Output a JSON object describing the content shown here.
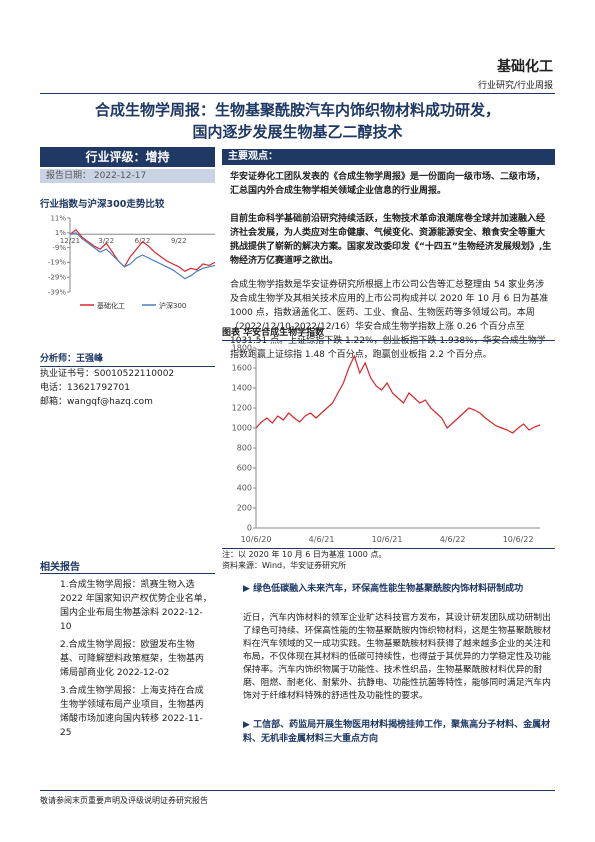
{
  "header": {
    "sector": "基础化工",
    "category": "行业研究/行业周报"
  },
  "title": [
    "合成生物学周报：生物基聚酰胺汽车内饰织物材料成功研发，",
    "国内逐步发展生物基乙二醇技术"
  ],
  "sidebar": {
    "rating_label": "行业评级：",
    "rating": "增持",
    "date_label": "报告日期：",
    "date": "2022-12-17",
    "analyst": "分析师：王强峰",
    "analyst_info": [
      "执业证书号：S0010522110002",
      "电话：13621792701",
      "邮箱：wangqf@hazq.com"
    ],
    "related_title": "相关报告",
    "related": [
      "1.合成生物学周报：凯赛生物入选 2022 年国家知识产权优势企业名单，国内企业布局生物基涂料 2022-12-10",
      "2.合成生物学周报：欧盟发布生物基、可降解塑料政策框架，生物基丙烯局部商业化 2022-12-02",
      "3.合成生物学周报：上海支持在合成生物学领域布局产业项目，生物基丙烯酸市场加速向国内转移 2022-11-25"
    ]
  },
  "key_points_title": "主要观点：",
  "paragraphs": [
    "华安证券化工团队发表的《合成生物学周报》是一份面向一级市场、二级市场，汇总国内外合成生物学相关领域企业信息的行业周报。",
    "目前生命科学基础前沿研究持续活跃，生物技术革命浪潮席卷全球并加速融入经济社会发展，为人类应对生命健康、气候变化、资源能源安全、粮食安全等重大挑战提供了崭新的解决方案。国家发改委印发《“十四五”生物经济发展规划》,生物经济万亿赛道呼之欲出。",
    "合成生物学指数是华安证券研究所根据上市公司公告等汇总整理由 54 家业务涉及合成生物学及其相关技术应用的上市公司构成并以 2020 年 10 月 6 日为基准 1000 点，指数涵盖化工、医药、工业、食品、生物医药等多领域公司。本周（2022/12/10-2022/12/16）华安合成生物学指数上涨 0.26 个百分点至 1031.51 点。上证综指下跌 1.22%，创业板指下跌 1.938%，华安合成生物学指数跑赢上证综指 1.48 个百分点，跑赢创业板指 2.2 个百分点。"
  ],
  "figure_title": "图表 华安合成生物学指数",
  "figure_note": "注：以 2020 年 10 月 6 日为基准 1000 点。",
  "figure_source": "资料来源：Wind，华安证券研究所",
  "sections": [
    {
      "heading": "绿色低碳融入未来汽车，环保高性能生物基聚酰胺内饰材料研制成功",
      "body": "近日，汽车内饰材料的领军企业旷达科技官方发布，其设计研发团队成功研制出了绿色可持续、环保高性能的生物基聚酰胺内饰织物材料，这是生物基聚酰胺材料在汽车领域的又一成功实践。生物基聚酰胺材料获得了越来越多企业的关注和布局，不仅体现在其材料的低碳可持续性，也得益于其优异的力学稳定性及功能保持率。汽车内饰织物属于功能性、技术性织品，生物基聚酰胺材料优异的耐磨、阻燃、耐老化、耐紫外、抗静电、功能性抗菌等特性，能够同时满足汽车内饰对于纤维材料特殊的舒适性及功能性的要求。"
    },
    {
      "heading": "工信部、药监局开展生物医用材料揭榜挂帅工作，聚焦高分子材料、金属材料、无机非金属材料三大重点方向"
    }
  ],
  "footer": "敬请参阅末页重要声明及评级说明证券研究报告",
  "chart_data": [
    {
      "type": "line",
      "title": "行业指数与沪深300走势比较",
      "grid": false,
      "categories": [
        "12/21",
        null,
        null,
        null,
        null,
        null,
        "3/22",
        null,
        null,
        null,
        null,
        null,
        "6/22",
        null,
        null,
        null,
        null,
        null,
        "9/22",
        null,
        null,
        null,
        null,
        null,
        null
      ],
      "ylim": [
        -39,
        11
      ],
      "yticks": [
        {
          "value": 11,
          "label": "11%"
        },
        {
          "value": 1,
          "label": "1%"
        },
        {
          "value": -9,
          "label": "-9%"
        },
        {
          "value": -19,
          "label": "-19%"
        },
        {
          "value": -29,
          "label": "-29%"
        },
        {
          "value": -39,
          "label": "-39%"
        }
      ],
      "series": [
        {
          "name": "基础化工",
          "color": "#d9262c",
          "values": [
            0,
            3,
            -2,
            -5,
            -8,
            -10,
            -6,
            -12,
            -18,
            -22,
            -15,
            -10,
            -5,
            -8,
            -12,
            -15,
            -18,
            -20,
            -22,
            -25,
            -23,
            -24,
            -20,
            -21,
            -19
          ]
        },
        {
          "name": "沪深300",
          "color": "#4a7fc1",
          "values": [
            0,
            1,
            -3,
            -6,
            -9,
            -12,
            -10,
            -14,
            -18,
            -22,
            -20,
            -16,
            -14,
            -16,
            -18,
            -20,
            -22,
            -24,
            -27,
            -30,
            -28,
            -25,
            -23,
            -22,
            -21
          ]
        }
      ]
    },
    {
      "type": "line",
      "grid": false,
      "categories": [
        "10/6/20",
        null,
        null,
        null,
        null,
        null,
        null,
        null,
        null,
        null,
        null,
        null,
        "4/6/21",
        null,
        null,
        null,
        null,
        null,
        null,
        null,
        null,
        null,
        null,
        null,
        "10/6/21",
        null,
        null,
        null,
        null,
        null,
        null,
        null,
        null,
        null,
        null,
        null,
        "4/6/22",
        null,
        null,
        null,
        null,
        null,
        null,
        null,
        null,
        null,
        null,
        null,
        "10/6/22",
        null,
        null,
        null,
        null
      ],
      "ylim": [
        0,
        1800
      ],
      "yticks": [
        0,
        200,
        400,
        600,
        800,
        1000,
        1200,
        1400,
        1600,
        1800
      ],
      "series": [
        {
          "color": "#d9262c",
          "values": [
            1000,
            1060,
            1100,
            1050,
            1120,
            1080,
            1150,
            1100,
            1060,
            1120,
            1150,
            1100,
            1150,
            1200,
            1250,
            1350,
            1450,
            1600,
            1720,
            1550,
            1650,
            1500,
            1420,
            1380,
            1450,
            1350,
            1300,
            1250,
            1350,
            1300,
            1250,
            1280,
            1200,
            1150,
            1100,
            1000,
            1050,
            1100,
            1150,
            1200,
            1180,
            1150,
            1100,
            1060,
            1020,
            1000,
            980,
            950,
            1000,
            1040,
            980,
            1010,
            1030
          ]
        }
      ]
    }
  ]
}
